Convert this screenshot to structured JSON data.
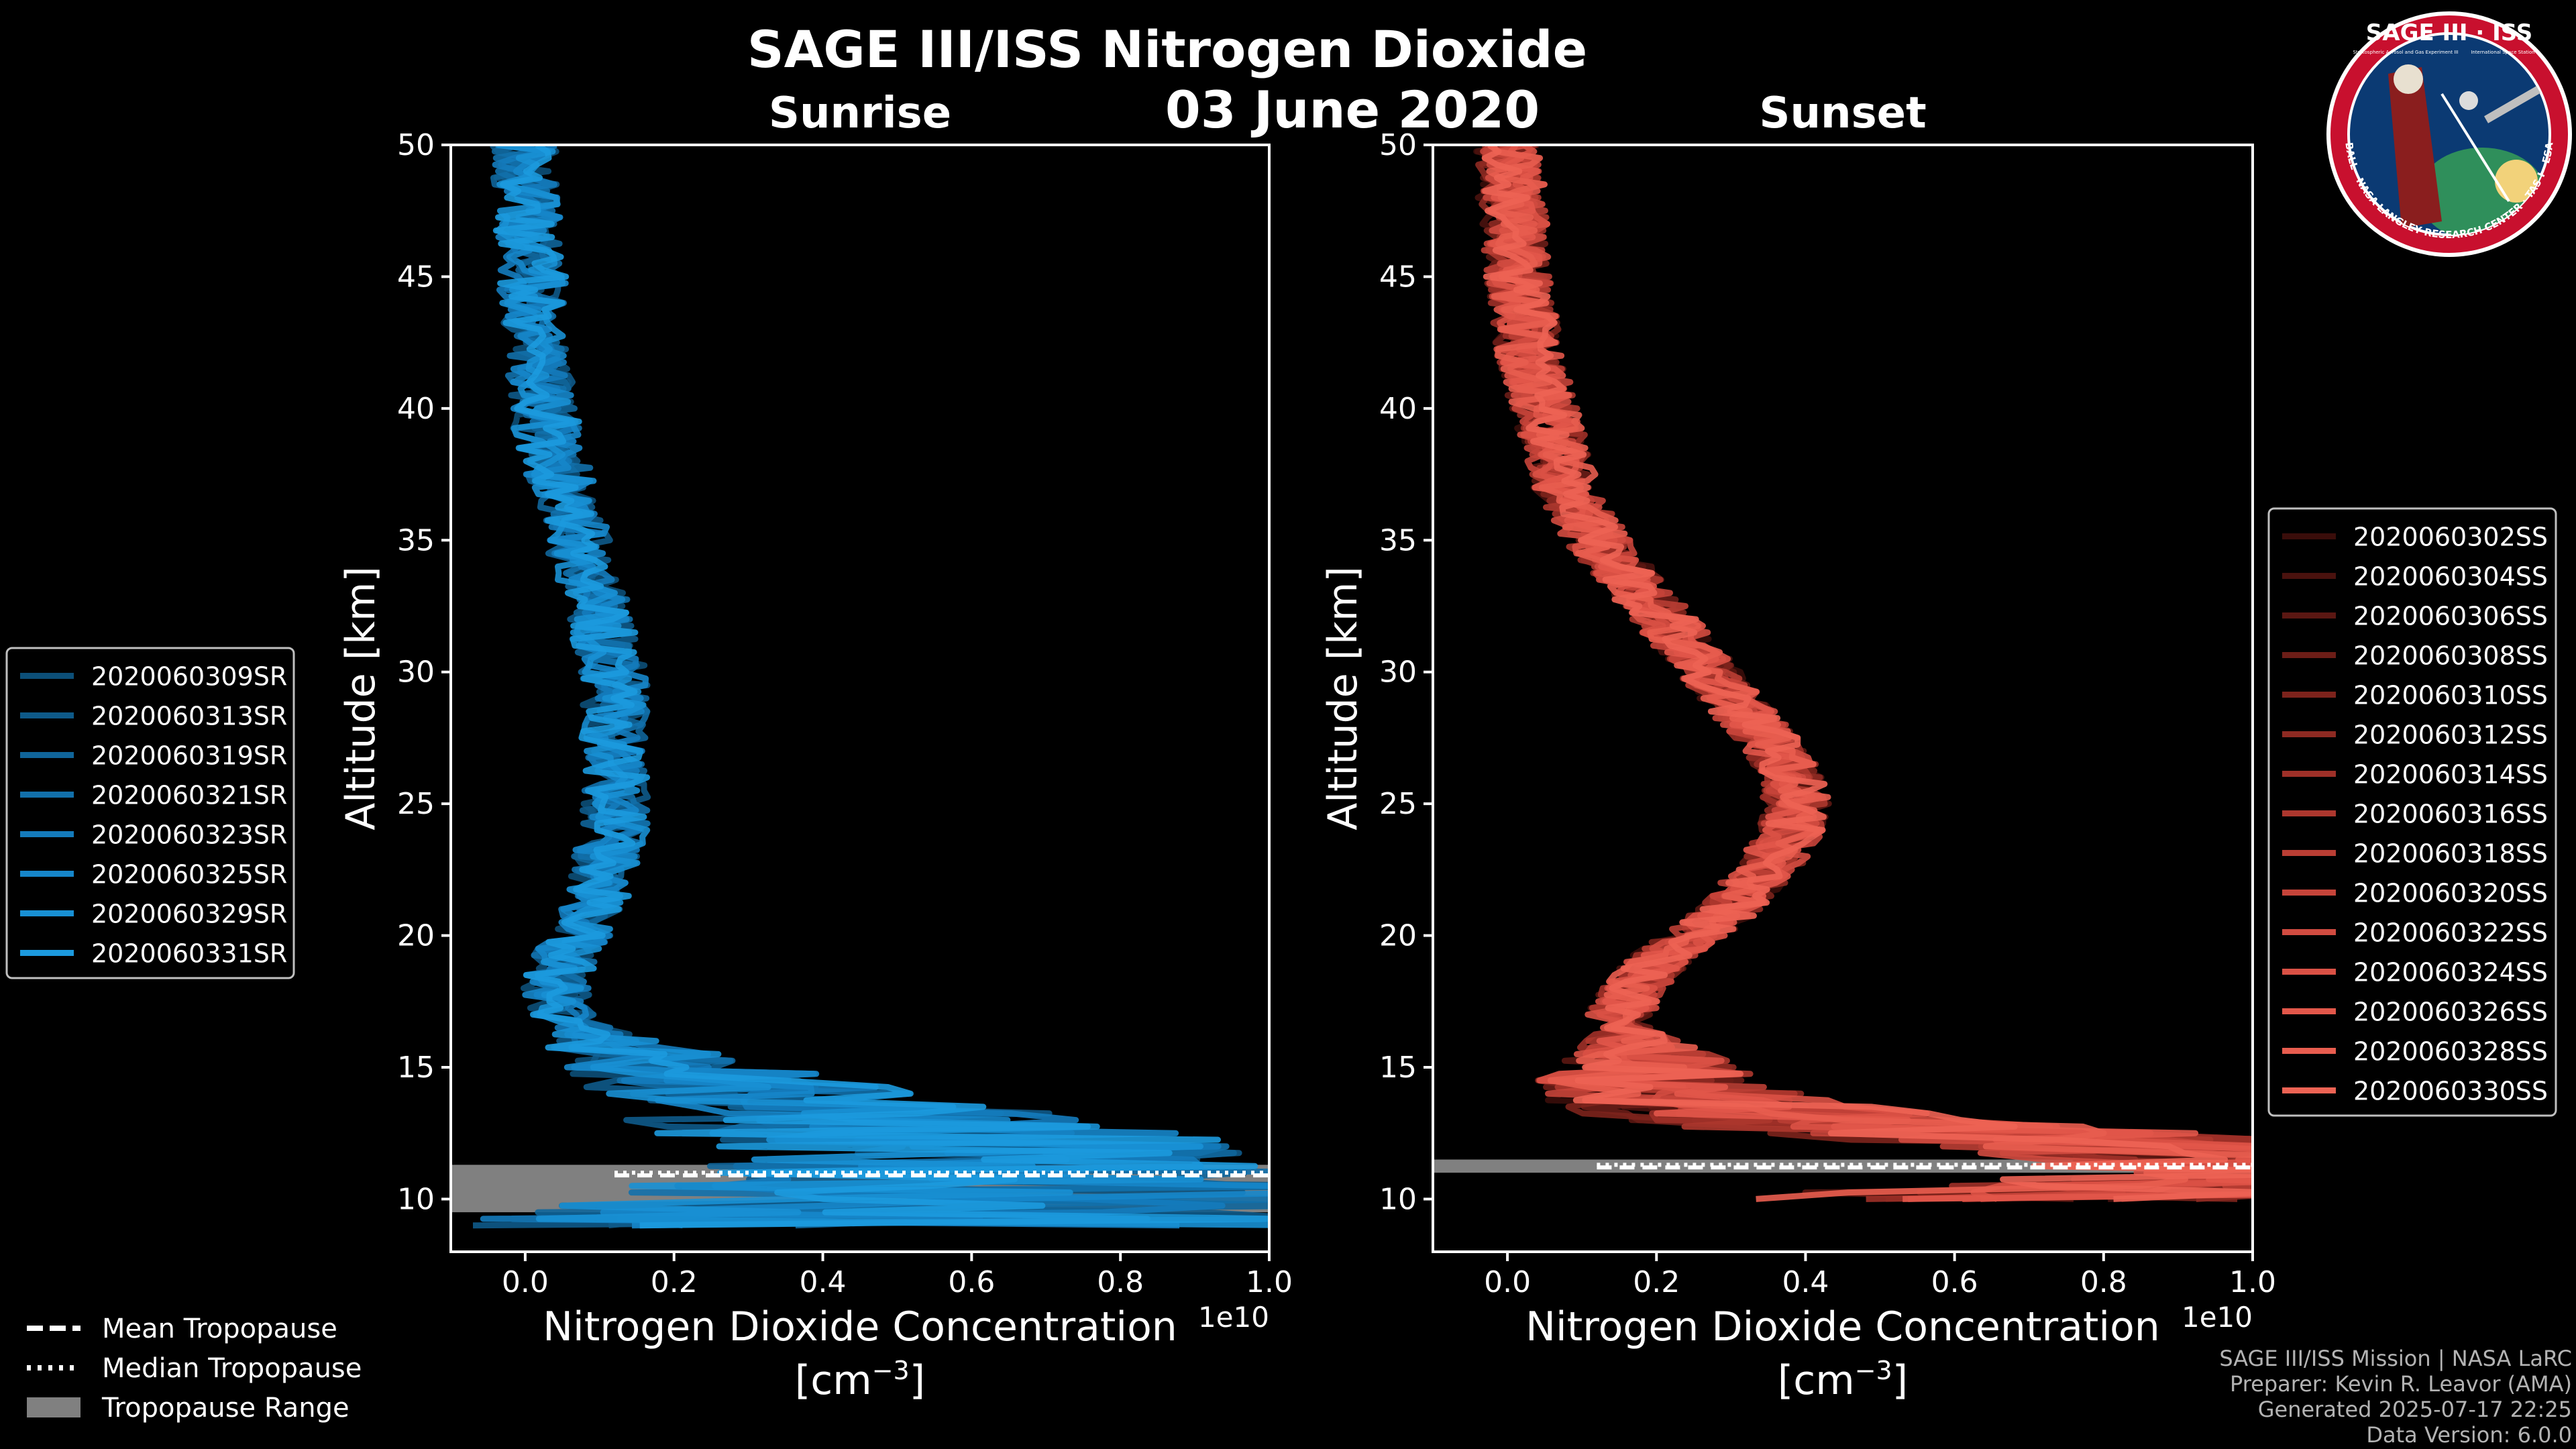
{
  "figure": {
    "title": "SAGE III/ISS Nitrogen Dioxide",
    "date": "03 June 2020",
    "credits": [
      "SAGE III/ISS Mission | NASA LaRC",
      "Preparer: Kevin R. Leavor (AMA)",
      "Generated 2025-07-17 22:25",
      "Data Version: 6.0.0"
    ],
    "logo": {
      "title": "SAGE III · ISS",
      "subtitle_left": "Stratospheric Aerosol and Gas Experiment III",
      "subtitle_right": "International Space Station",
      "ring_text": "BALL · NASA LANGLEY RESEARCH CENTER · TAS-I · ESA"
    },
    "colors": {
      "background": "#000000",
      "sunrise_base": "#1a8fd6",
      "sunset_base": "#e8574a",
      "tropopause_range": "#808080",
      "axes": "#ffffff"
    },
    "tropo_legend": [
      {
        "label": "Mean Tropopause",
        "style": "dashed"
      },
      {
        "label": "Median Tropopause",
        "style": "dotted"
      },
      {
        "label": "Tropopause Range",
        "style": "patch"
      }
    ]
  },
  "chart_data": [
    {
      "type": "line",
      "panel": "sunrise",
      "title": "Sunrise",
      "xlabel": "Nitrogen Dioxide Concentration",
      "xlabel_units": "[cm",
      "xlabel_exp": "−3",
      "xlabel_close": "]",
      "ylabel": "Altitude [km]",
      "x_offset_label": "1e10",
      "xlim": [
        -0.1,
        1.0
      ],
      "ylim": [
        8,
        50
      ],
      "xticks": [
        0.0,
        0.2,
        0.4,
        0.6,
        0.8,
        1.0
      ],
      "xtick_labels": [
        "0.0",
        "0.2",
        "0.4",
        "0.6",
        "0.8",
        "1.0"
      ],
      "yticks": [
        10,
        15,
        20,
        25,
        30,
        35,
        40,
        45,
        50
      ],
      "ytick_labels": [
        "10",
        "15",
        "20",
        "25",
        "30",
        "35",
        "40",
        "45",
        "50"
      ],
      "tropopause": {
        "mean": 10.9,
        "median": 11.0,
        "range": [
          9.5,
          11.3
        ]
      },
      "legend_loc": "left",
      "series": [
        {
          "name": "2020060309SR",
          "color": "#0c4f78"
        },
        {
          "name": "2020060313SR",
          "color": "#0e5a89"
        },
        {
          "name": "2020060319SR",
          "color": "#10659a"
        },
        {
          "name": "2020060321SR",
          "color": "#1270ab"
        },
        {
          "name": "2020060323SR",
          "color": "#147bbc"
        },
        {
          "name": "2020060325SR",
          "color": "#1686ca"
        },
        {
          "name": "2020060329SR",
          "color": "#1890d4"
        },
        {
          "name": "2020060331SR",
          "color": "#1c9ade"
        }
      ],
      "mean_profile": {
        "alt": [
          9,
          10,
          11,
          12,
          13,
          14,
          15,
          16,
          17,
          18,
          19,
          20,
          21,
          22,
          23,
          24,
          25,
          26,
          27,
          28,
          29,
          30,
          31,
          32,
          33,
          34,
          35,
          36,
          37,
          38,
          39,
          40,
          41,
          42,
          43,
          44,
          45,
          46,
          47,
          48,
          49,
          50
        ],
        "value": [
          0.25,
          0.4,
          0.55,
          0.5,
          0.35,
          0.25,
          0.15,
          0.08,
          0.05,
          0.04,
          0.05,
          0.07,
          0.09,
          0.1,
          0.11,
          0.12,
          0.12,
          0.12,
          0.12,
          0.12,
          0.12,
          0.12,
          0.11,
          0.1,
          0.09,
          0.08,
          0.07,
          0.06,
          0.05,
          0.04,
          0.03,
          0.025,
          0.02,
          0.02,
          0.015,
          0.01,
          0.01,
          0.005,
          0.005,
          0.0,
          0.0,
          0.0
        ]
      }
    },
    {
      "type": "line",
      "panel": "sunset",
      "title": "Sunset",
      "xlabel": "Nitrogen Dioxide Concentration",
      "xlabel_units": "[cm",
      "xlabel_exp": "−3",
      "xlabel_close": "]",
      "ylabel": "Altitude [km]",
      "x_offset_label": "1e10",
      "xlim": [
        -0.1,
        1.0
      ],
      "ylim": [
        8,
        50
      ],
      "xticks": [
        0.0,
        0.2,
        0.4,
        0.6,
        0.8,
        1.0
      ],
      "xtick_labels": [
        "0.0",
        "0.2",
        "0.4",
        "0.6",
        "0.8",
        "1.0"
      ],
      "yticks": [
        10,
        15,
        20,
        25,
        30,
        35,
        40,
        45,
        50
      ],
      "ytick_labels": [
        "10",
        "15",
        "20",
        "25",
        "30",
        "35",
        "40",
        "45",
        "50"
      ],
      "tropopause": {
        "mean": 11.2,
        "median": 11.3,
        "range": [
          11.0,
          11.5
        ]
      },
      "legend_loc": "right",
      "series": [
        {
          "name": "2020060302SS",
          "color": "#3a0d0a"
        },
        {
          "name": "2020060304SS",
          "color": "#4a120e"
        },
        {
          "name": "2020060306SS",
          "color": "#5b1712"
        },
        {
          "name": "2020060308SS",
          "color": "#6c1d17"
        },
        {
          "name": "2020060310SS",
          "color": "#7d231c"
        },
        {
          "name": "2020060312SS",
          "color": "#8e2a22"
        },
        {
          "name": "2020060314SS",
          "color": "#9e3028"
        },
        {
          "name": "2020060316SS",
          "color": "#ad372e"
        },
        {
          "name": "2020060318SS",
          "color": "#ba3e34"
        },
        {
          "name": "2020060320SS",
          "color": "#c6443a"
        },
        {
          "name": "2020060322SS",
          "color": "#d14b40"
        },
        {
          "name": "2020060324SS",
          "color": "#da5145"
        },
        {
          "name": "2020060326SS",
          "color": "#e2574a"
        },
        {
          "name": "2020060328SS",
          "color": "#e85d4f"
        },
        {
          "name": "2020060330SS",
          "color": "#ed6354"
        }
      ],
      "mean_profile": {
        "alt": [
          10,
          11,
          12,
          13,
          14,
          15,
          16,
          17,
          18,
          19,
          20,
          21,
          22,
          23,
          24,
          25,
          26,
          27,
          28,
          29,
          30,
          31,
          32,
          33,
          34,
          35,
          36,
          37,
          38,
          39,
          40,
          41,
          42,
          43,
          44,
          45,
          46,
          47,
          48,
          49,
          50
        ],
        "value": [
          0.6,
          1.0,
          0.8,
          0.3,
          0.15,
          0.15,
          0.15,
          0.15,
          0.17,
          0.2,
          0.25,
          0.3,
          0.33,
          0.36,
          0.38,
          0.39,
          0.38,
          0.36,
          0.33,
          0.3,
          0.27,
          0.24,
          0.21,
          0.18,
          0.15,
          0.12,
          0.1,
          0.08,
          0.07,
          0.06,
          0.05,
          0.04,
          0.03,
          0.025,
          0.02,
          0.015,
          0.01,
          0.01,
          0.005,
          0.005,
          0.0
        ]
      }
    }
  ]
}
